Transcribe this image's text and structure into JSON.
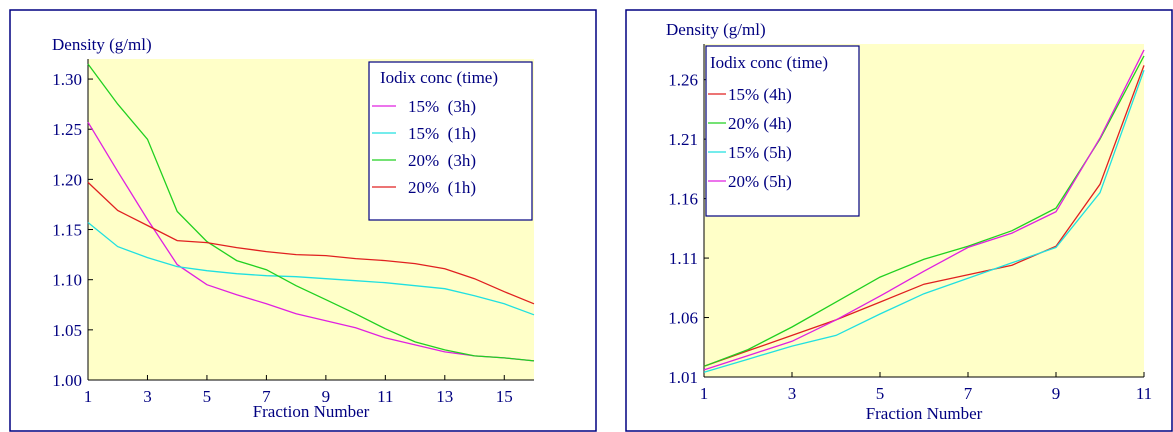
{
  "chart_data": [
    {
      "type": "line",
      "ylabel": "Density (g/ml)",
      "xlabel": "Fraction Number",
      "xlim": [
        1,
        16
      ],
      "ylim": [
        1.0,
        1.32
      ],
      "x_ticks": [
        1,
        3,
        5,
        7,
        9,
        11,
        13,
        15
      ],
      "y_ticks": [
        "1.00",
        "1.05",
        "1.10",
        "1.15",
        "1.20",
        "1.25",
        "1.30"
      ],
      "legend_title": "Iodix conc (time)",
      "legend_position": "top-right",
      "grid": false,
      "x": [
        1,
        2,
        3,
        4,
        5,
        6,
        7,
        8,
        9,
        10,
        11,
        12,
        13,
        14,
        15,
        16
      ],
      "series": [
        {
          "name": "15%  (3h)",
          "color": "#e020e0",
          "values": [
            1.257,
            1.208,
            1.16,
            1.115,
            1.095,
            1.085,
            1.076,
            1.066,
            1.059,
            1.052,
            1.042,
            1.035,
            1.028,
            1.024,
            1.022,
            1.019
          ]
        },
        {
          "name": "15%  (1h)",
          "color": "#20e0e0",
          "values": [
            1.157,
            1.133,
            1.122,
            1.113,
            1.109,
            1.106,
            1.104,
            1.103,
            1.101,
            1.099,
            1.097,
            1.094,
            1.091,
            1.084,
            1.076,
            1.065
          ]
        },
        {
          "name": "20%  (3h)",
          "color": "#20d020",
          "values": [
            1.315,
            1.275,
            1.24,
            1.168,
            1.138,
            1.119,
            1.11,
            1.094,
            1.08,
            1.066,
            1.051,
            1.038,
            1.03,
            1.024,
            1.022,
            1.019
          ]
        },
        {
          "name": "20%  (1h)",
          "color": "#e02020",
          "values": [
            1.197,
            1.169,
            1.154,
            1.139,
            1.137,
            1.132,
            1.128,
            1.125,
            1.124,
            1.121,
            1.119,
            1.116,
            1.111,
            1.101,
            1.088,
            1.076
          ]
        }
      ]
    },
    {
      "type": "line",
      "ylabel": "Density (g/ml)",
      "xlabel": "Fraction Number",
      "xlim": [
        1,
        11
      ],
      "ylim": [
        1.01,
        1.29
      ],
      "x_ticks": [
        1,
        3,
        5,
        7,
        9,
        11
      ],
      "y_ticks": [
        "1.01",
        "1.06",
        "1.11",
        "1.16",
        "1.21",
        "1.26"
      ],
      "legend_title": "Iodix conc (time)",
      "legend_position": "top-left",
      "grid": false,
      "x": [
        1,
        2,
        3,
        4,
        5,
        6,
        7,
        8,
        9,
        10,
        11
      ],
      "series": [
        {
          "name": "15% (4h)",
          "color": "#e02020",
          "values": [
            1.019,
            1.032,
            1.045,
            1.058,
            1.073,
            1.088,
            1.096,
            1.104,
            1.12,
            1.172,
            1.272
          ]
        },
        {
          "name": "20% (4h)",
          "color": "#20d020",
          "values": [
            1.019,
            1.033,
            1.052,
            1.073,
            1.094,
            1.109,
            1.12,
            1.133,
            1.152,
            1.21,
            1.28
          ]
        },
        {
          "name": "15% (5h)",
          "color": "#20e0e0",
          "values": [
            1.014,
            1.025,
            1.036,
            1.045,
            1.063,
            1.08,
            1.093,
            1.106,
            1.119,
            1.165,
            1.268
          ]
        },
        {
          "name": "20% (5h)",
          "color": "#e020e0",
          "values": [
            1.016,
            1.028,
            1.04,
            1.058,
            1.078,
            1.099,
            1.119,
            1.131,
            1.149,
            1.211,
            1.285
          ]
        }
      ]
    }
  ]
}
